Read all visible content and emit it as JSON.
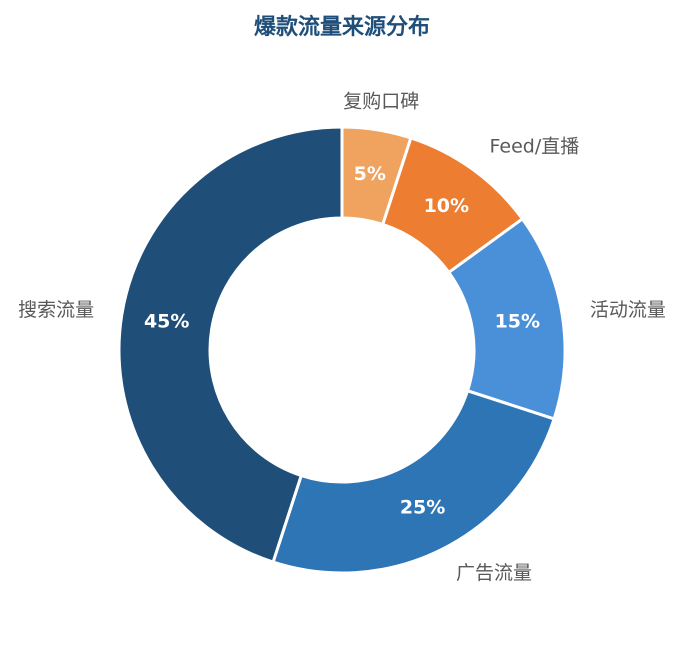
{
  "chart_data": {
    "type": "donut",
    "title": "爆款流量来源分布",
    "categories": [
      "复购口碑",
      "Feed/直播",
      "活动流量",
      "广告流量",
      "搜索流量"
    ],
    "values": [
      5,
      10,
      15,
      25,
      45
    ],
    "value_labels": [
      "5%",
      "10%",
      "15%",
      "25%",
      "45%"
    ],
    "colors": [
      "#f0a35e",
      "#ed7d31",
      "#4a90d9",
      "#2e75b6",
      "#1f4e79"
    ]
  }
}
